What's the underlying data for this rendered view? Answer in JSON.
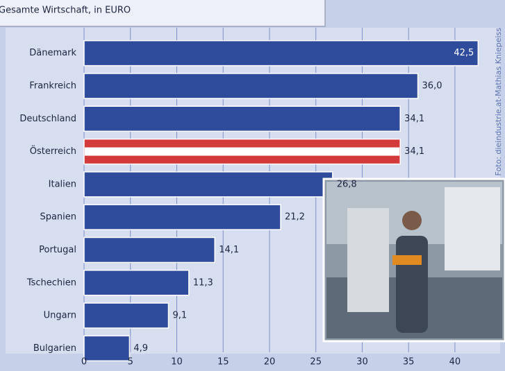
{
  "chart_data": {
    "type": "bar",
    "orientation": "horizontal",
    "title": "Gesamte Wirtschaft, in EURO",
    "credit": "Foto: dieindustrie.at-Mathias Kniepeiss",
    "categories": [
      "Dänemark",
      "Frankreich",
      "Deutschland",
      "Österreich",
      "Italien",
      "Spanien",
      "Portugal",
      "Tschechien",
      "Ungarn",
      "Bulgarien"
    ],
    "values": [
      42.5,
      36.0,
      34.1,
      34.1,
      26.8,
      21.2,
      14.1,
      11.3,
      9.1,
      4.9
    ],
    "value_labels": [
      "42,5",
      "36,0",
      "34,1",
      "34,1",
      "26,8",
      "21,2",
      "14,1",
      "11,3",
      "9,1",
      "4,9"
    ],
    "colors": [
      "#2f4b9c",
      "#2f4b9c",
      "#2f4b9c",
      "#d33a3c",
      "#2f4b9c",
      "#2f4b9c",
      "#2f4b9c",
      "#2f4b9c",
      "#2f4b9c",
      "#2f4b9c"
    ],
    "xlim": [
      0,
      44.5
    ],
    "xticks": [
      0,
      5,
      10,
      15,
      20,
      25,
      30,
      35,
      40
    ],
    "grid": true
  }
}
